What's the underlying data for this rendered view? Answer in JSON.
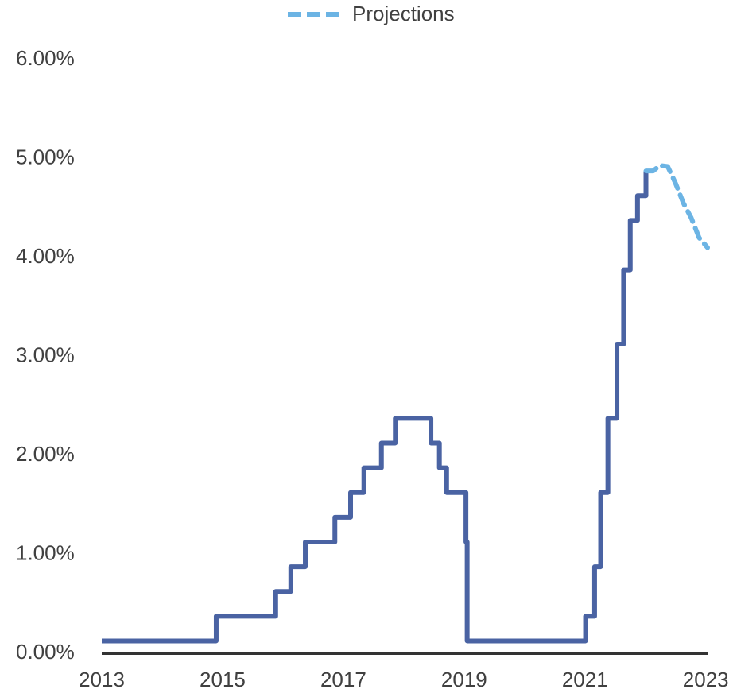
{
  "chart_data": {
    "type": "line",
    "series": [
      {
        "color": "#4a63a3",
        "step": "post",
        "dashed": false,
        "x": [
          2013,
          2014.895,
          2015.88,
          2016.13,
          2016.37,
          2016.86,
          2017.12,
          2017.34,
          2017.63,
          2017.86,
          2018.45,
          2018.59,
          2018.71,
          2019.03,
          2019.05,
          2021.01,
          2021.16,
          2021.26,
          2021.38,
          2021.53,
          2021.64,
          2021.75,
          2021.87,
          2022.01
        ],
        "values": [
          0.125,
          0.375,
          0.625,
          0.875,
          1.125,
          1.375,
          1.625,
          1.875,
          2.125,
          2.375,
          2.125,
          1.875,
          1.625,
          1.125,
          0.125,
          0.375,
          0.875,
          1.625,
          2.375,
          3.125,
          3.875,
          4.375,
          4.625,
          4.875
        ]
      },
      {
        "name": "Projections",
        "color": "#6cb4e4",
        "dashed": true,
        "x": [
          2022.01,
          2022.13,
          2022.24,
          2022.37,
          2022.5,
          2022.63,
          2022.76,
          2022.89,
          2023.03
        ],
        "values": [
          4.875,
          4.875,
          4.93,
          4.92,
          4.75,
          4.55,
          4.4,
          4.2,
          4.1
        ]
      }
    ],
    "xlim": [
      2013,
      2023.03
    ],
    "xticks": [
      2013,
      2015,
      2017,
      2019,
      2021,
      2023
    ],
    "ylim": [
      0,
      6
    ],
    "yticks": [
      {
        "value": 0,
        "label": "0.00%"
      },
      {
        "value": 1,
        "label": "1.00%"
      },
      {
        "value": 2,
        "label": "2.00%"
      },
      {
        "value": 3,
        "label": "3.00%"
      },
      {
        "value": 4,
        "label": "4.00%"
      },
      {
        "value": 5,
        "label": "5.00%"
      },
      {
        "value": 6,
        "label": "6.00%"
      }
    ],
    "grid": false,
    "legend": "top"
  }
}
